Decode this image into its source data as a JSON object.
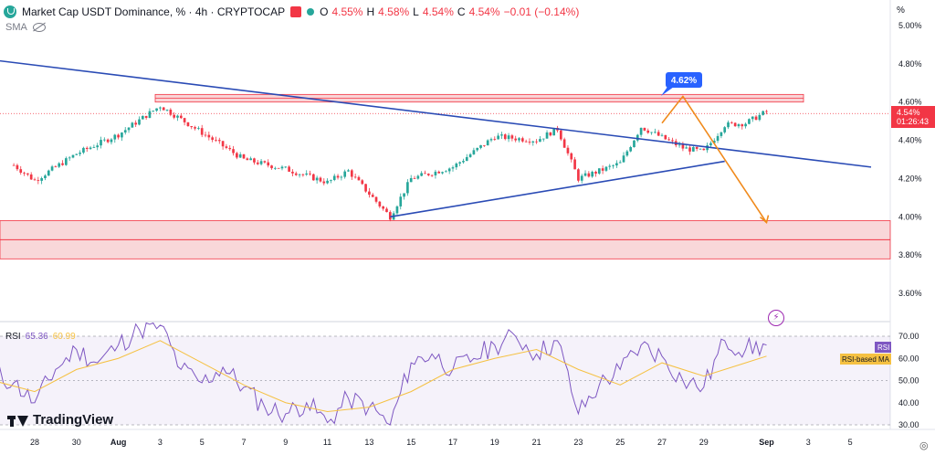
{
  "header": {
    "title": "Market Cap USDT Dominance, % · 4h · CRYPTOCAP",
    "open_key": "O",
    "open": "4.55%",
    "high_key": "H",
    "high": "4.58%",
    "low_key": "L",
    "low": "4.54%",
    "close_key": "C",
    "close": "4.54%",
    "change": "−0.01 (−0.14%)",
    "percent_button": "%"
  },
  "indicator_sma": "SMA",
  "rsi_legend": {
    "name": "RSI",
    "v1": "65.36",
    "v2": "60.99"
  },
  "brand": "TradingView",
  "bolt_symbol": "⚡",
  "gear_symbol": "◎",
  "colors": {
    "up": "#26a69a",
    "down": "#f23645",
    "trendline": "#2a4bb5",
    "projection": "#f08a1c",
    "zone": "#f7c9cc",
    "rsi": "#7e57c2",
    "rsi_ma": "#f5c142"
  },
  "chart_data": [
    {
      "type": "candlestick",
      "title": "Market Cap USDT Dominance, % · 4h · CRYPTOCAP",
      "y_axis_ticks": [
        "5.00%",
        "4.80%",
        "4.60%",
        "4.40%",
        "4.20%",
        "4.00%",
        "3.80%",
        "3.60%"
      ],
      "ylim": [
        3.55,
        5.02
      ],
      "x_axis_ticks": [
        "28",
        "30",
        "Aug",
        "3",
        "5",
        "7",
        "9",
        "11",
        "13",
        "15",
        "17",
        "19",
        "21",
        "23",
        "25",
        "27",
        "29",
        "Sep",
        "3",
        "5"
      ],
      "last_price": {
        "value": 4.54,
        "label": "4.54%",
        "countdown": "01:26:43"
      },
      "key_points": [
        {
          "date": "Jul 27",
          "value": 4.27
        },
        {
          "date": "Jul 28",
          "value": 4.19
        },
        {
          "date": "Jul 30",
          "value": 4.33
        },
        {
          "date": "Aug 1",
          "value": 4.43
        },
        {
          "date": "Aug 3",
          "value": 4.58
        },
        {
          "date": "Aug 5",
          "value": 4.44
        },
        {
          "date": "Aug 7",
          "value": 4.3
        },
        {
          "date": "Aug 9",
          "value": 4.25
        },
        {
          "date": "Aug 11",
          "value": 4.18
        },
        {
          "date": "Aug 12",
          "value": 4.24
        },
        {
          "date": "Aug 14",
          "value": 4.0
        },
        {
          "date": "Aug 15",
          "value": 4.2
        },
        {
          "date": "Aug 17",
          "value": 4.26
        },
        {
          "date": "Aug 19",
          "value": 4.42
        },
        {
          "date": "Aug 21",
          "value": 4.4
        },
        {
          "date": "Aug 22",
          "value": 4.46
        },
        {
          "date": "Aug 23",
          "value": 4.2
        },
        {
          "date": "Aug 25",
          "value": 4.28
        },
        {
          "date": "Aug 26",
          "value": 4.47
        },
        {
          "date": "Aug 28",
          "value": 4.36
        },
        {
          "date": "Aug 29",
          "value": 4.34
        },
        {
          "date": "Aug 30",
          "value": 4.48
        },
        {
          "date": "Aug 31",
          "value": 4.49
        },
        {
          "date": "Sep 1",
          "value": 4.55
        }
      ],
      "annotations": {
        "resistance_zone": [
          4.6,
          4.64
        ],
        "support_zone": [
          3.78,
          3.98
        ],
        "support_mid_line": 3.88,
        "callout": {
          "label": "4.62%",
          "value": 4.62
        },
        "descending_trendline": [
          {
            "date": "Jul 26",
            "value": 4.82
          },
          {
            "date": "Sep 6",
            "value": 4.26
          }
        ],
        "ascending_trendline": [
          {
            "date": "Aug 14",
            "value": 4.0
          },
          {
            "date": "Aug 30",
            "value": 4.29
          }
        ],
        "projection_path": [
          {
            "date": "Aug 27",
            "value": 4.49
          },
          {
            "date": "Aug 28",
            "value": 4.63
          },
          {
            "date": "Sep 1",
            "value": 3.97
          }
        ]
      }
    },
    {
      "type": "line",
      "title": "RSI",
      "y_axis_ticks": [
        "70.00",
        "60.00",
        "50.00",
        "40.00",
        "30.00"
      ],
      "ylim": [
        28,
        76
      ],
      "band": [
        30,
        70
      ],
      "series": [
        {
          "name": "RSI",
          "last": 65.36,
          "points": [
            [
              "Jul 26",
              53
            ],
            [
              "Jul 27",
              49
            ],
            [
              "Jul 28",
              40
            ],
            [
              "Jul 29",
              55
            ],
            [
              "Jul 30",
              64
            ],
            [
              "Jul 31",
              58
            ],
            [
              "Aug 1",
              66
            ],
            [
              "Aug 2",
              73
            ],
            [
              "Aug 3",
              75
            ],
            [
              "Aug 4",
              55
            ],
            [
              "Aug 5",
              49
            ],
            [
              "Aug 6",
              56
            ],
            [
              "Aug 7",
              47
            ],
            [
              "Aug 8",
              38
            ],
            [
              "Aug 9",
              35
            ],
            [
              "Aug 10",
              40
            ],
            [
              "Aug 11",
              31
            ],
            [
              "Aug 12",
              42
            ],
            [
              "Aug 13",
              38
            ],
            [
              "Aug 14",
              30
            ],
            [
              "Aug 15",
              58
            ],
            [
              "Aug 16",
              62
            ],
            [
              "Aug 17",
              55
            ],
            [
              "Aug 18",
              60
            ],
            [
              "Aug 19",
              66
            ],
            [
              "Aug 20",
              70
            ],
            [
              "Aug 21",
              62
            ],
            [
              "Aug 22",
              68
            ],
            [
              "Aug 23",
              35
            ],
            [
              "Aug 24",
              48
            ],
            [
              "Aug 25",
              55
            ],
            [
              "Aug 26",
              66
            ],
            [
              "Aug 27",
              61
            ],
            [
              "Aug 28",
              50
            ],
            [
              "Aug 29",
              47
            ],
            [
              "Aug 30",
              68
            ],
            [
              "Aug 31",
              64
            ],
            [
              "Sep 1",
              66
            ]
          ]
        },
        {
          "name": "RSI-based MA",
          "last": 60.99,
          "points": [
            [
              "Jul 26",
              50
            ],
            [
              "Jul 28",
              45
            ],
            [
              "Jul 30",
              55
            ],
            [
              "Aug 1",
              60
            ],
            [
              "Aug 3",
              68
            ],
            [
              "Aug 5",
              58
            ],
            [
              "Aug 7",
              48
            ],
            [
              "Aug 9",
              40
            ],
            [
              "Aug 11",
              36
            ],
            [
              "Aug 13",
              38
            ],
            [
              "Aug 15",
              45
            ],
            [
              "Aug 17",
              55
            ],
            [
              "Aug 19",
              60
            ],
            [
              "Aug 21",
              64
            ],
            [
              "Aug 23",
              55
            ],
            [
              "Aug 25",
              48
            ],
            [
              "Aug 27",
              58
            ],
            [
              "Aug 29",
              52
            ],
            [
              "Aug 31",
              58
            ],
            [
              "Sep 1",
              61
            ]
          ]
        }
      ],
      "legend": [
        "RSI",
        "RSI-based MA"
      ]
    }
  ]
}
